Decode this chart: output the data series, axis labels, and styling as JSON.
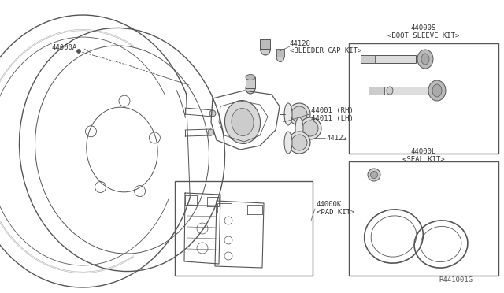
{
  "bg_color": "#ffffff",
  "lc": "#555555",
  "lc_dark": "#333333",
  "ref_number": "R441001G",
  "label_44000A": "44000A",
  "label_44128a": "44128",
  "label_44128b": "<BLEEDER CAP KIT>",
  "label_44001a": "44001 (RH)",
  "label_44001b": "44011 (LH)",
  "label_44122": "44122",
  "label_44000K_a": "44000K",
  "label_44000K_b": "<PAD KIT>",
  "label_44000S_a": "44000S",
  "label_44000S_b": "<BOOT SLEEVE KIT>",
  "label_44000L_a": "44000L",
  "label_44000L_b": "<SEAL KIT>",
  "font_size": 6.5,
  "font_family": "monospace"
}
